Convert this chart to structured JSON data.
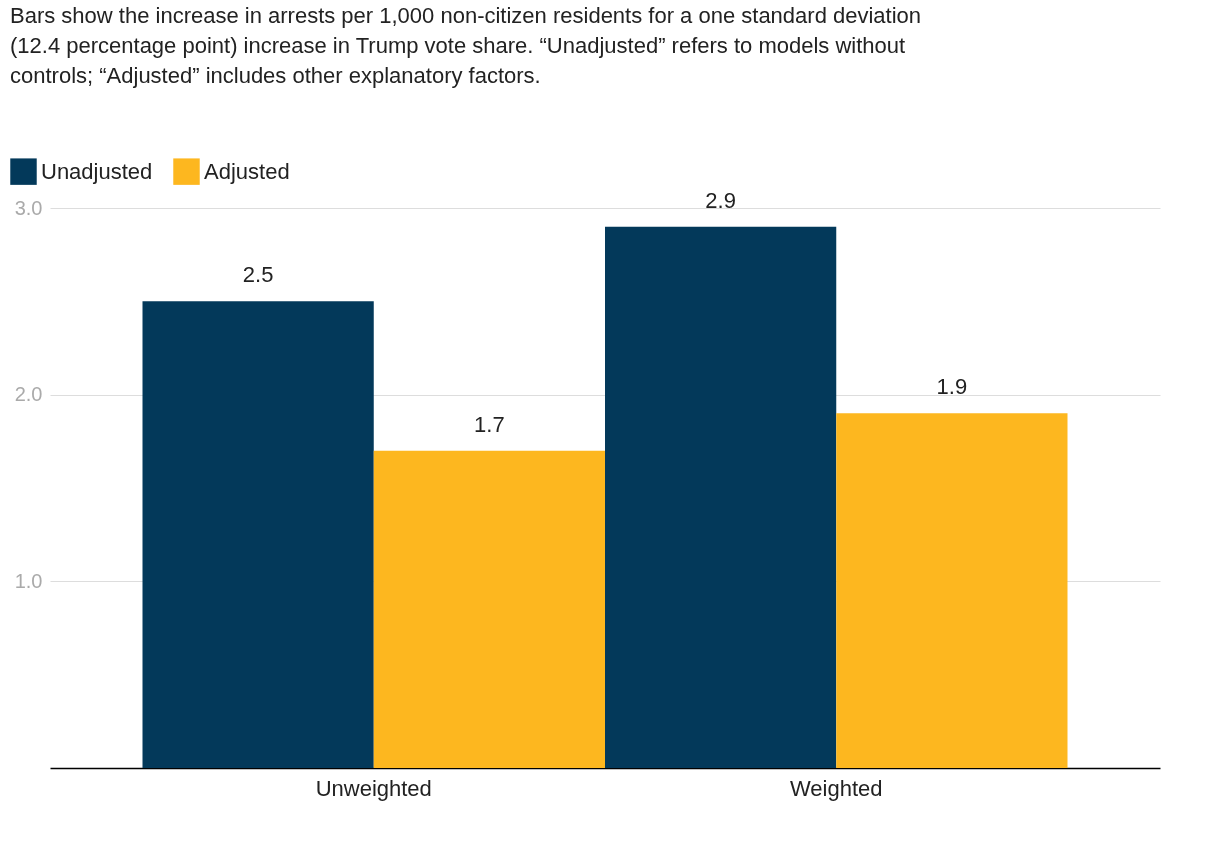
{
  "chart_data": {
    "type": "bar",
    "title": "Bars show the increase in arrests per 1,000 non-citizen residents for a one standard deviation (12.4 percentage point) increase in Trump vote share. “Unadjusted” refers to models without controls; “Adjusted” includes other explanatory factors.",
    "categories": [
      "Unweighted",
      "Weighted"
    ],
    "series": [
      {
        "name": "Unadjusted",
        "color": "#03395a",
        "values": [
          2.5,
          2.9
        ]
      },
      {
        "name": "Adjusted",
        "color": "#fdb71f",
        "values": [
          1.7,
          1.9
        ]
      }
    ],
    "ylim": [
      0,
      3.0
    ],
    "yticks": [
      {
        "value": 1,
        "label": "1.0"
      },
      {
        "value": 2,
        "label": "2.0"
      },
      {
        "value": 3,
        "label": "3.0"
      }
    ],
    "grid": "y",
    "legend": "top left",
    "data_labels": true
  }
}
